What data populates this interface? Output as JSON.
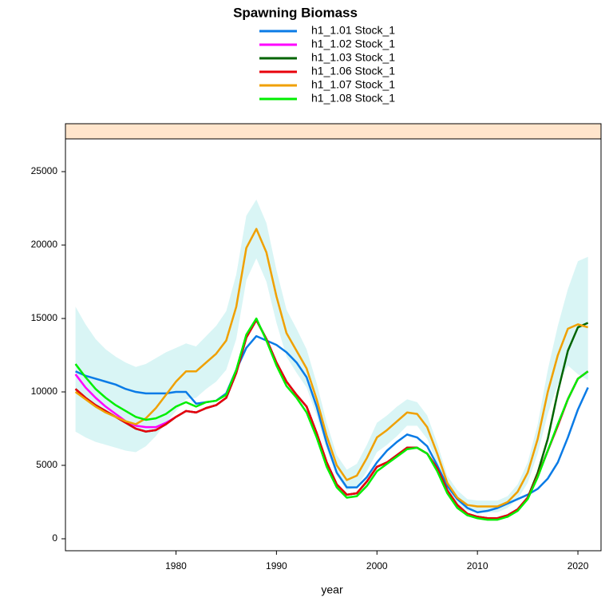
{
  "chart_data": {
    "type": "line",
    "title": "Spawning Biomass",
    "xlabel": "year",
    "x": [
      1970,
      1971,
      1972,
      1973,
      1974,
      1975,
      1976,
      1977,
      1978,
      1979,
      1980,
      1981,
      1982,
      1983,
      1984,
      1985,
      1986,
      1987,
      1988,
      1989,
      1990,
      1991,
      1992,
      1993,
      1994,
      1995,
      1996,
      1997,
      1998,
      1999,
      2000,
      2001,
      2002,
      2003,
      2004,
      2005,
      2006,
      2007,
      2008,
      2009,
      2010,
      2011,
      2012,
      2013,
      2014,
      2015,
      2016,
      2017,
      2018,
      2019,
      2020,
      2021
    ],
    "xlim": [
      1969.0,
      2022.3
    ],
    "xticks": [
      1980,
      1990,
      2000,
      2010,
      2020
    ],
    "ylim": [
      -815,
      27230
    ],
    "yticks": [
      0,
      5000,
      10000,
      15000,
      20000,
      25000
    ],
    "series": [
      {
        "name": "h1_1.01 Stock_1",
        "color": "#0a7be6",
        "values": [
          11400,
          11100,
          10900,
          10700,
          10500,
          10200,
          10000,
          9900,
          9900,
          9900,
          10000,
          10000,
          9200,
          9300,
          9400,
          9900,
          11500,
          13000,
          13800,
          13500,
          13200,
          12700,
          12000,
          11000,
          9000,
          6500,
          4500,
          3500,
          3500,
          4200,
          5200,
          6000,
          6600,
          7100,
          6900,
          6300,
          5000,
          3600,
          2700,
          2100,
          1800,
          1900,
          2100,
          2400,
          2700,
          3000,
          3400,
          4100,
          5200,
          6900,
          8800,
          10300
        ]
      },
      {
        "name": "h1_1.02 Stock_1",
        "color": "#ff00ff",
        "values": [
          11200,
          10300,
          9600,
          9000,
          8500,
          8000,
          7700,
          7600,
          7600,
          7900,
          8300,
          8700,
          8600,
          8900,
          9100,
          9600,
          11300,
          13700,
          14900,
          13600,
          12000,
          10700,
          9800,
          9000,
          7200,
          5200,
          3700,
          3000,
          3100,
          3900,
          4900,
          5200,
          5700,
          6200,
          6200,
          5800,
          4800,
          3300,
          2300,
          1700,
          1500,
          1400,
          1400,
          1600,
          2000,
          2800,
          4300,
          6000,
          7700,
          9500,
          10900,
          11400
        ]
      },
      {
        "name": "h1_1.03 Stock_1",
        "color": "#006400",
        "values": [
          10200,
          9600,
          9100,
          8700,
          8300,
          7900,
          7500,
          7300,
          7400,
          7800,
          8300,
          8700,
          8600,
          8900,
          9100,
          9600,
          11300,
          13700,
          14900,
          13600,
          12000,
          10700,
          9800,
          9000,
          7200,
          5200,
          3700,
          3000,
          3100,
          3900,
          4900,
          5200,
          5700,
          6200,
          6200,
          5800,
          4800,
          3300,
          2300,
          1700,
          1500,
          1400,
          1400,
          1600,
          2000,
          2800,
          4500,
          6800,
          10000,
          12800,
          14400,
          14700
        ]
      },
      {
        "name": "h1_1.06 Stock_1",
        "color": "#e8000b",
        "values": [
          10200,
          9600,
          9100,
          8700,
          8300,
          7900,
          7500,
          7300,
          7400,
          7800,
          8300,
          8700,
          8600,
          8900,
          9100,
          9600,
          11300,
          13700,
          14900,
          13600,
          12000,
          10700,
          9800,
          9000,
          7200,
          5200,
          3700,
          3000,
          3100,
          3900,
          4900,
          5200,
          5700,
          6200,
          6200,
          5800,
          4800,
          3300,
          2300,
          1700,
          1500,
          1400,
          1400,
          1600,
          2000,
          2800,
          4300,
          6000,
          7700,
          9500,
          10900,
          11400
        ]
      },
      {
        "name": "h1_1.07 Stock_1",
        "color": "#f0a000",
        "values": [
          10000,
          9500,
          9000,
          8600,
          8300,
          8000,
          7800,
          8200,
          8900,
          9800,
          10700,
          11400,
          11400,
          12000,
          12600,
          13500,
          15800,
          19800,
          21100,
          19500,
          16500,
          14000,
          12800,
          11600,
          9500,
          7000,
          5000,
          4000,
          4300,
          5500,
          6900,
          7400,
          8000,
          8600,
          8500,
          7600,
          5800,
          3800,
          2800,
          2300,
          2200,
          2200,
          2200,
          2500,
          3200,
          4500,
          6800,
          10000,
          12500,
          14300,
          14600,
          14400
        ],
        "band_color": "#bfeeee",
        "band_upper": [
          15800,
          14600,
          13600,
          12900,
          12400,
          12000,
          11700,
          11900,
          12300,
          12700,
          13000,
          13300,
          13100,
          13800,
          14500,
          15500,
          18000,
          22000,
          23100,
          21500,
          18300,
          15600,
          14300,
          12900,
          10600,
          7900,
          5700,
          4700,
          5100,
          6400,
          7900,
          8400,
          9000,
          9500,
          9300,
          8400,
          6500,
          4300,
          3300,
          2700,
          2600,
          2600,
          2600,
          2900,
          3700,
          5200,
          7800,
          11500,
          14500,
          17000,
          18900,
          19200
        ],
        "band_lower": [
          7300,
          6900,
          6600,
          6400,
          6200,
          6000,
          5900,
          6300,
          7000,
          7900,
          8700,
          9500,
          9600,
          10200,
          10700,
          11500,
          13600,
          17600,
          19100,
          17500,
          14700,
          12400,
          11300,
          10300,
          8400,
          6100,
          4300,
          3300,
          3500,
          4600,
          5900,
          6400,
          7000,
          7700,
          7700,
          6800,
          5100,
          3300,
          2300,
          1900,
          1800,
          1800,
          1800,
          2100,
          2700,
          3800,
          5800,
          8500,
          10500,
          11800,
          11200,
          10800
        ]
      },
      {
        "name": "h1_1.08 Stock_1",
        "color": "#00ee00",
        "values": [
          11900,
          11000,
          10200,
          9600,
          9100,
          8700,
          8300,
          8100,
          8200,
          8500,
          9000,
          9300,
          9000,
          9300,
          9400,
          9800,
          11500,
          13900,
          15000,
          13500,
          11800,
          10400,
          9600,
          8600,
          6900,
          4900,
          3500,
          2800,
          2900,
          3600,
          4600,
          5100,
          5600,
          6100,
          6200,
          5800,
          4600,
          3100,
          2100,
          1600,
          1400,
          1300,
          1300,
          1500,
          1900,
          2700,
          4200,
          6000,
          7800,
          9500,
          10900,
          11400
        ]
      }
    ]
  }
}
